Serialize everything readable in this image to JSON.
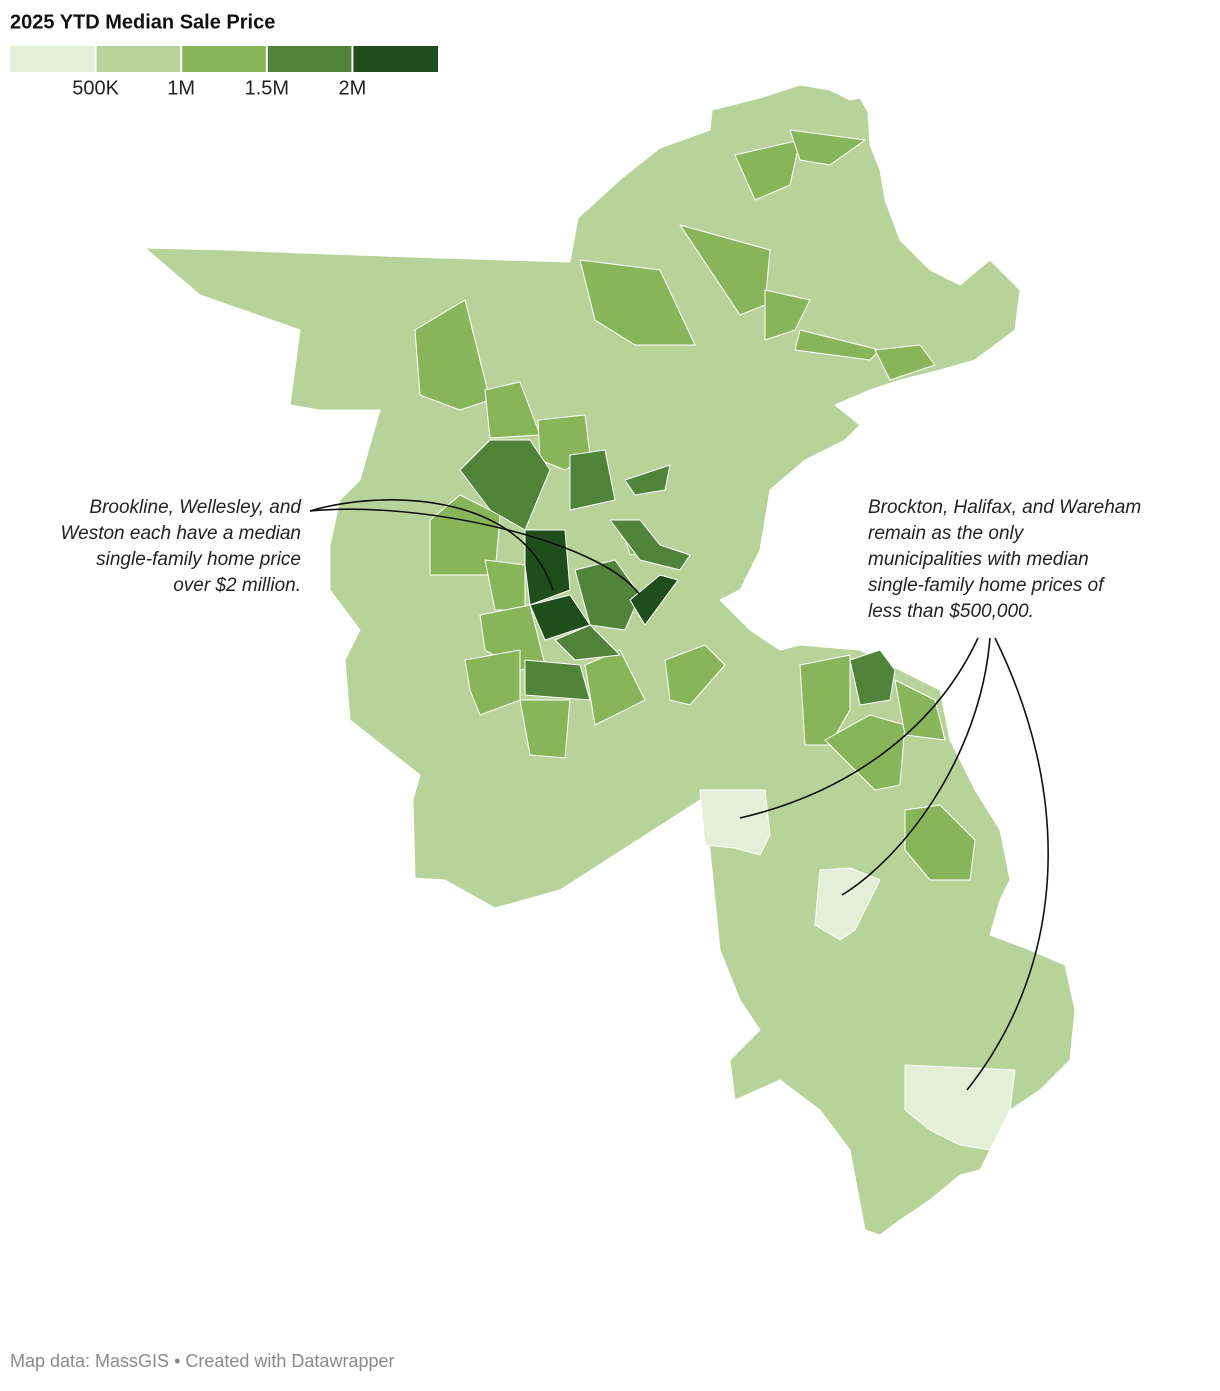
{
  "title": "2025 YTD Median Sale Price",
  "legend": {
    "colors": [
      "#e3efd6",
      "#b8d39a",
      "#89b55a",
      "#52833a",
      "#1f4e1c"
    ],
    "ticks": [
      {
        "value": 500000,
        "label": "500K"
      },
      {
        "value": 1000000,
        "label": "1M"
      },
      {
        "value": 1500000,
        "label": "1.5M"
      },
      {
        "value": 2000000,
        "label": "2M"
      }
    ]
  },
  "annotations": [
    {
      "lines": [
        "Brookline, Wellesley, and",
        "Weston each have a median",
        "single-family home price",
        "over $2 million."
      ]
    },
    {
      "lines": [
        "Brockton, Halifax, and Wareham",
        "remain as the only",
        "municipalities with median",
        "single-family home prices of",
        "less than $500,000."
      ]
    }
  ],
  "footer": "Map data: MassGIS • Created with Datawrapper"
}
